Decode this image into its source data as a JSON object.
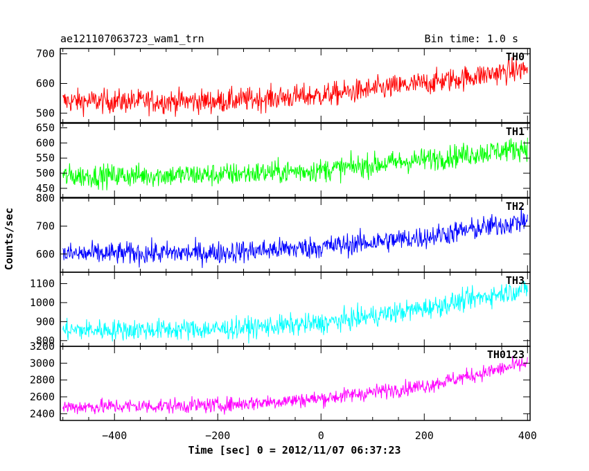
{
  "header": {
    "title": "ae121107063723_wam1_trn",
    "bin_time": "Bin time: 1.0 s"
  },
  "chart_data": {
    "type": "line",
    "xlabel": "Time [sec] 0 = 2012/11/07 06:37:23",
    "ylabel": "Counts/sec",
    "xlim": [
      -505,
      405
    ],
    "x_step": 1,
    "x_ticks": [
      -400,
      -200,
      0,
      200,
      400
    ],
    "x_tick_labels": [
      "−400",
      "−200",
      "0",
      "200",
      "400"
    ],
    "grid": false,
    "panels": [
      {
        "name": "TH0",
        "color": "#ff0000",
        "ylim": [
          468,
          718
        ],
        "y_ticks": [
          500,
          600,
          700
        ],
        "y_tick_labels": [
          "500",
          "600",
          "700"
        ],
        "trend_x": [
          -500,
          -200,
          0,
          200,
          400
        ],
        "trend_y": [
          540,
          540,
          560,
          600,
          650
        ],
        "noise_amp": 40,
        "x_range": [
          -500,
          400
        ]
      },
      {
        "name": "TH1",
        "color": "#00ff00",
        "ylim": [
          420,
          665
        ],
        "y_ticks": [
          450,
          500,
          550,
          600,
          650
        ],
        "y_tick_labels": [
          "450",
          "500",
          "550",
          "600",
          "650"
        ],
        "trend_x": [
          -500,
          -200,
          0,
          200,
          400
        ],
        "trend_y": [
          490,
          495,
          510,
          545,
          585
        ],
        "noise_amp": 38,
        "x_range": [
          -500,
          400
        ]
      },
      {
        "name": "TH2",
        "color": "#0000ff",
        "ylim": [
          535,
          800
        ],
        "y_ticks": [
          600,
          700,
          800
        ],
        "y_tick_labels": [
          "600",
          "700",
          "800"
        ],
        "trend_x": [
          -500,
          -200,
          0,
          200,
          400
        ],
        "trend_y": [
          600,
          605,
          625,
          660,
          720
        ],
        "noise_amp": 40,
        "x_range": [
          -500,
          400
        ]
      },
      {
        "name": "TH3",
        "color": "#00ffff",
        "ylim": [
          770,
          1160
        ],
        "y_ticks": [
          800,
          900,
          1000,
          1100
        ],
        "y_tick_labels": [
          "800",
          "900",
          "1000",
          "1100"
        ],
        "trend_x": [
          -500,
          -200,
          0,
          200,
          400
        ],
        "trend_y": [
          855,
          860,
          890,
          970,
          1075
        ],
        "noise_amp": 55,
        "x_range": [
          -500,
          400
        ]
      },
      {
        "name": "TH0123",
        "color": "#ff00ff",
        "ylim": [
          2320,
          3200
        ],
        "y_ticks": [
          2400,
          2600,
          2800,
          3000,
          3200
        ],
        "y_tick_labels": [
          "2400",
          "2600",
          "2800",
          "3000",
          "3200"
        ],
        "trend_x": [
          -500,
          -200,
          0,
          200,
          400
        ],
        "trend_y": [
          2480,
          2500,
          2580,
          2730,
          3000
        ],
        "noise_amp": 90,
        "x_range": [
          -500,
          400
        ]
      }
    ]
  }
}
